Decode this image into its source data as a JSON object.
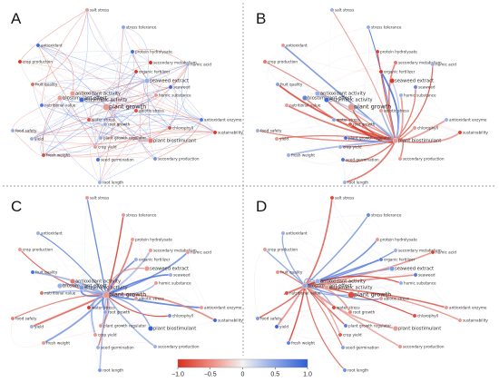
{
  "panels": [
    "A",
    "B",
    "C",
    "D"
  ],
  "nodes": [
    {
      "id": "salt_stress",
      "label": "salt stress"
    },
    {
      "id": "stress_tolerance",
      "label": "stress tolerance"
    },
    {
      "id": "antioxidant",
      "label": "antioxidant"
    },
    {
      "id": "crop_production",
      "label": "crop production"
    },
    {
      "id": "protein_hydrolysate",
      "label": "protein hydrolysate"
    },
    {
      "id": "secondary_metabolism",
      "label": "secondary metabolism"
    },
    {
      "id": "organic_fertilizer",
      "label": "organic fertilizer"
    },
    {
      "id": "fruit_quality",
      "label": "fruit quality"
    },
    {
      "id": "biostimulant_effect",
      "label": "biostimulant effect"
    },
    {
      "id": "seaweed_extract",
      "label": "seaweed extract"
    },
    {
      "id": "humic_acid",
      "label": "humic acid"
    },
    {
      "id": "enzymatic_activity",
      "label": "enzymatic activity"
    },
    {
      "id": "seaweed",
      "label": "seaweed"
    },
    {
      "id": "nutritional_value",
      "label": "nutritional value"
    },
    {
      "id": "antioxidant_activity",
      "label": "antioxidant activity"
    },
    {
      "id": "plant_growth",
      "label": "plant growth"
    },
    {
      "id": "humic_substance",
      "label": "humic substance"
    },
    {
      "id": "abiotic_stress",
      "label": "abiotic stress"
    },
    {
      "id": "chlorophyll",
      "label": "chlorophyll"
    },
    {
      "id": "antioxidant_enzyme",
      "label": "antioxidant enzyme"
    },
    {
      "id": "food_safety",
      "label": "food safety"
    },
    {
      "id": "root_growth",
      "label": "root growth"
    },
    {
      "id": "growth_regulator",
      "label": "plant growth regulator"
    },
    {
      "id": "plant_biostimulant",
      "label": "plant biostimulant"
    },
    {
      "id": "yield",
      "label": "yield"
    },
    {
      "id": "water_stress",
      "label": "water stress"
    },
    {
      "id": "fresh_weight",
      "label": "fresh weight"
    },
    {
      "id": "seed_germination",
      "label": "seed germination"
    },
    {
      "id": "crop_yield",
      "label": "crop yield"
    },
    {
      "id": "secondary_production",
      "label": "secondary production"
    },
    {
      "id": "sustainability",
      "label": "sustainability"
    },
    {
      "id": "root_length",
      "label": "root length"
    }
  ],
  "colorbar": {
    "ticks": [
      "−1.0",
      "−0.5",
      "0",
      "0.5",
      "1.0"
    ],
    "min": -1.0,
    "max": 1.0,
    "colors": {
      "negative": "#d7301f",
      "neutral": "#f2f2f2",
      "positive": "#2f5fd6"
    }
  },
  "colors": {
    "panel_separator": "#9a9a9a",
    "background": "#ffffff"
  }
}
